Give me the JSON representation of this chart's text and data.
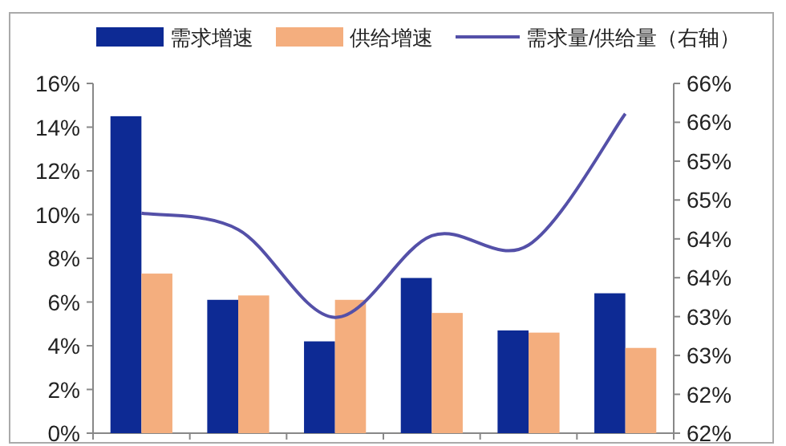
{
  "chart_data": {
    "type": "bar",
    "categories": [
      null,
      null,
      null,
      null,
      null,
      null
    ],
    "series": [
      {
        "name": "需求增速",
        "color": "#0d2a94",
        "values": [
          14.5,
          6.1,
          4.2,
          7.1,
          4.7,
          6.4
        ]
      },
      {
        "name": "供给增速",
        "color": "#f4ae7e",
        "values": [
          7.3,
          6.3,
          6.1,
          5.5,
          4.6,
          3.9
        ]
      },
      {
        "name": "需求量/供给量（右轴）",
        "type": "line",
        "axis": "y2",
        "color": "#5450a8",
        "values": [
          64.83,
          64.62,
          63.49,
          64.54,
          64.42,
          66.11
        ]
      }
    ],
    "ylim": [
      0,
      16
    ],
    "yticks": [
      {
        "value": 0,
        "label": "0%"
      },
      {
        "value": 2,
        "label": "2%"
      },
      {
        "value": 4,
        "label": "4%"
      },
      {
        "value": 6,
        "label": "6%"
      },
      {
        "value": 8,
        "label": "8%"
      },
      {
        "value": 10,
        "label": "10%"
      },
      {
        "value": 12,
        "label": "12%"
      },
      {
        "value": 14,
        "label": "14%"
      },
      {
        "value": 16,
        "label": "16%"
      }
    ],
    "y2lim": [
      62,
      66.5
    ],
    "y2ticks": [
      {
        "value": 62,
        "label": "62%"
      },
      {
        "value": 62.5,
        "label": "62%"
      },
      {
        "value": 63,
        "label": "63%"
      },
      {
        "value": 63.5,
        "label": "63%"
      },
      {
        "value": 64,
        "label": "64%"
      },
      {
        "value": 64.5,
        "label": "64%"
      },
      {
        "value": 65,
        "label": "65%"
      },
      {
        "value": 65.5,
        "label": "65%"
      },
      {
        "value": 66,
        "label": "66%"
      },
      {
        "value": 66.5,
        "label": "66%"
      }
    ],
    "legend": "top",
    "grid": false,
    "marker": "none"
  }
}
